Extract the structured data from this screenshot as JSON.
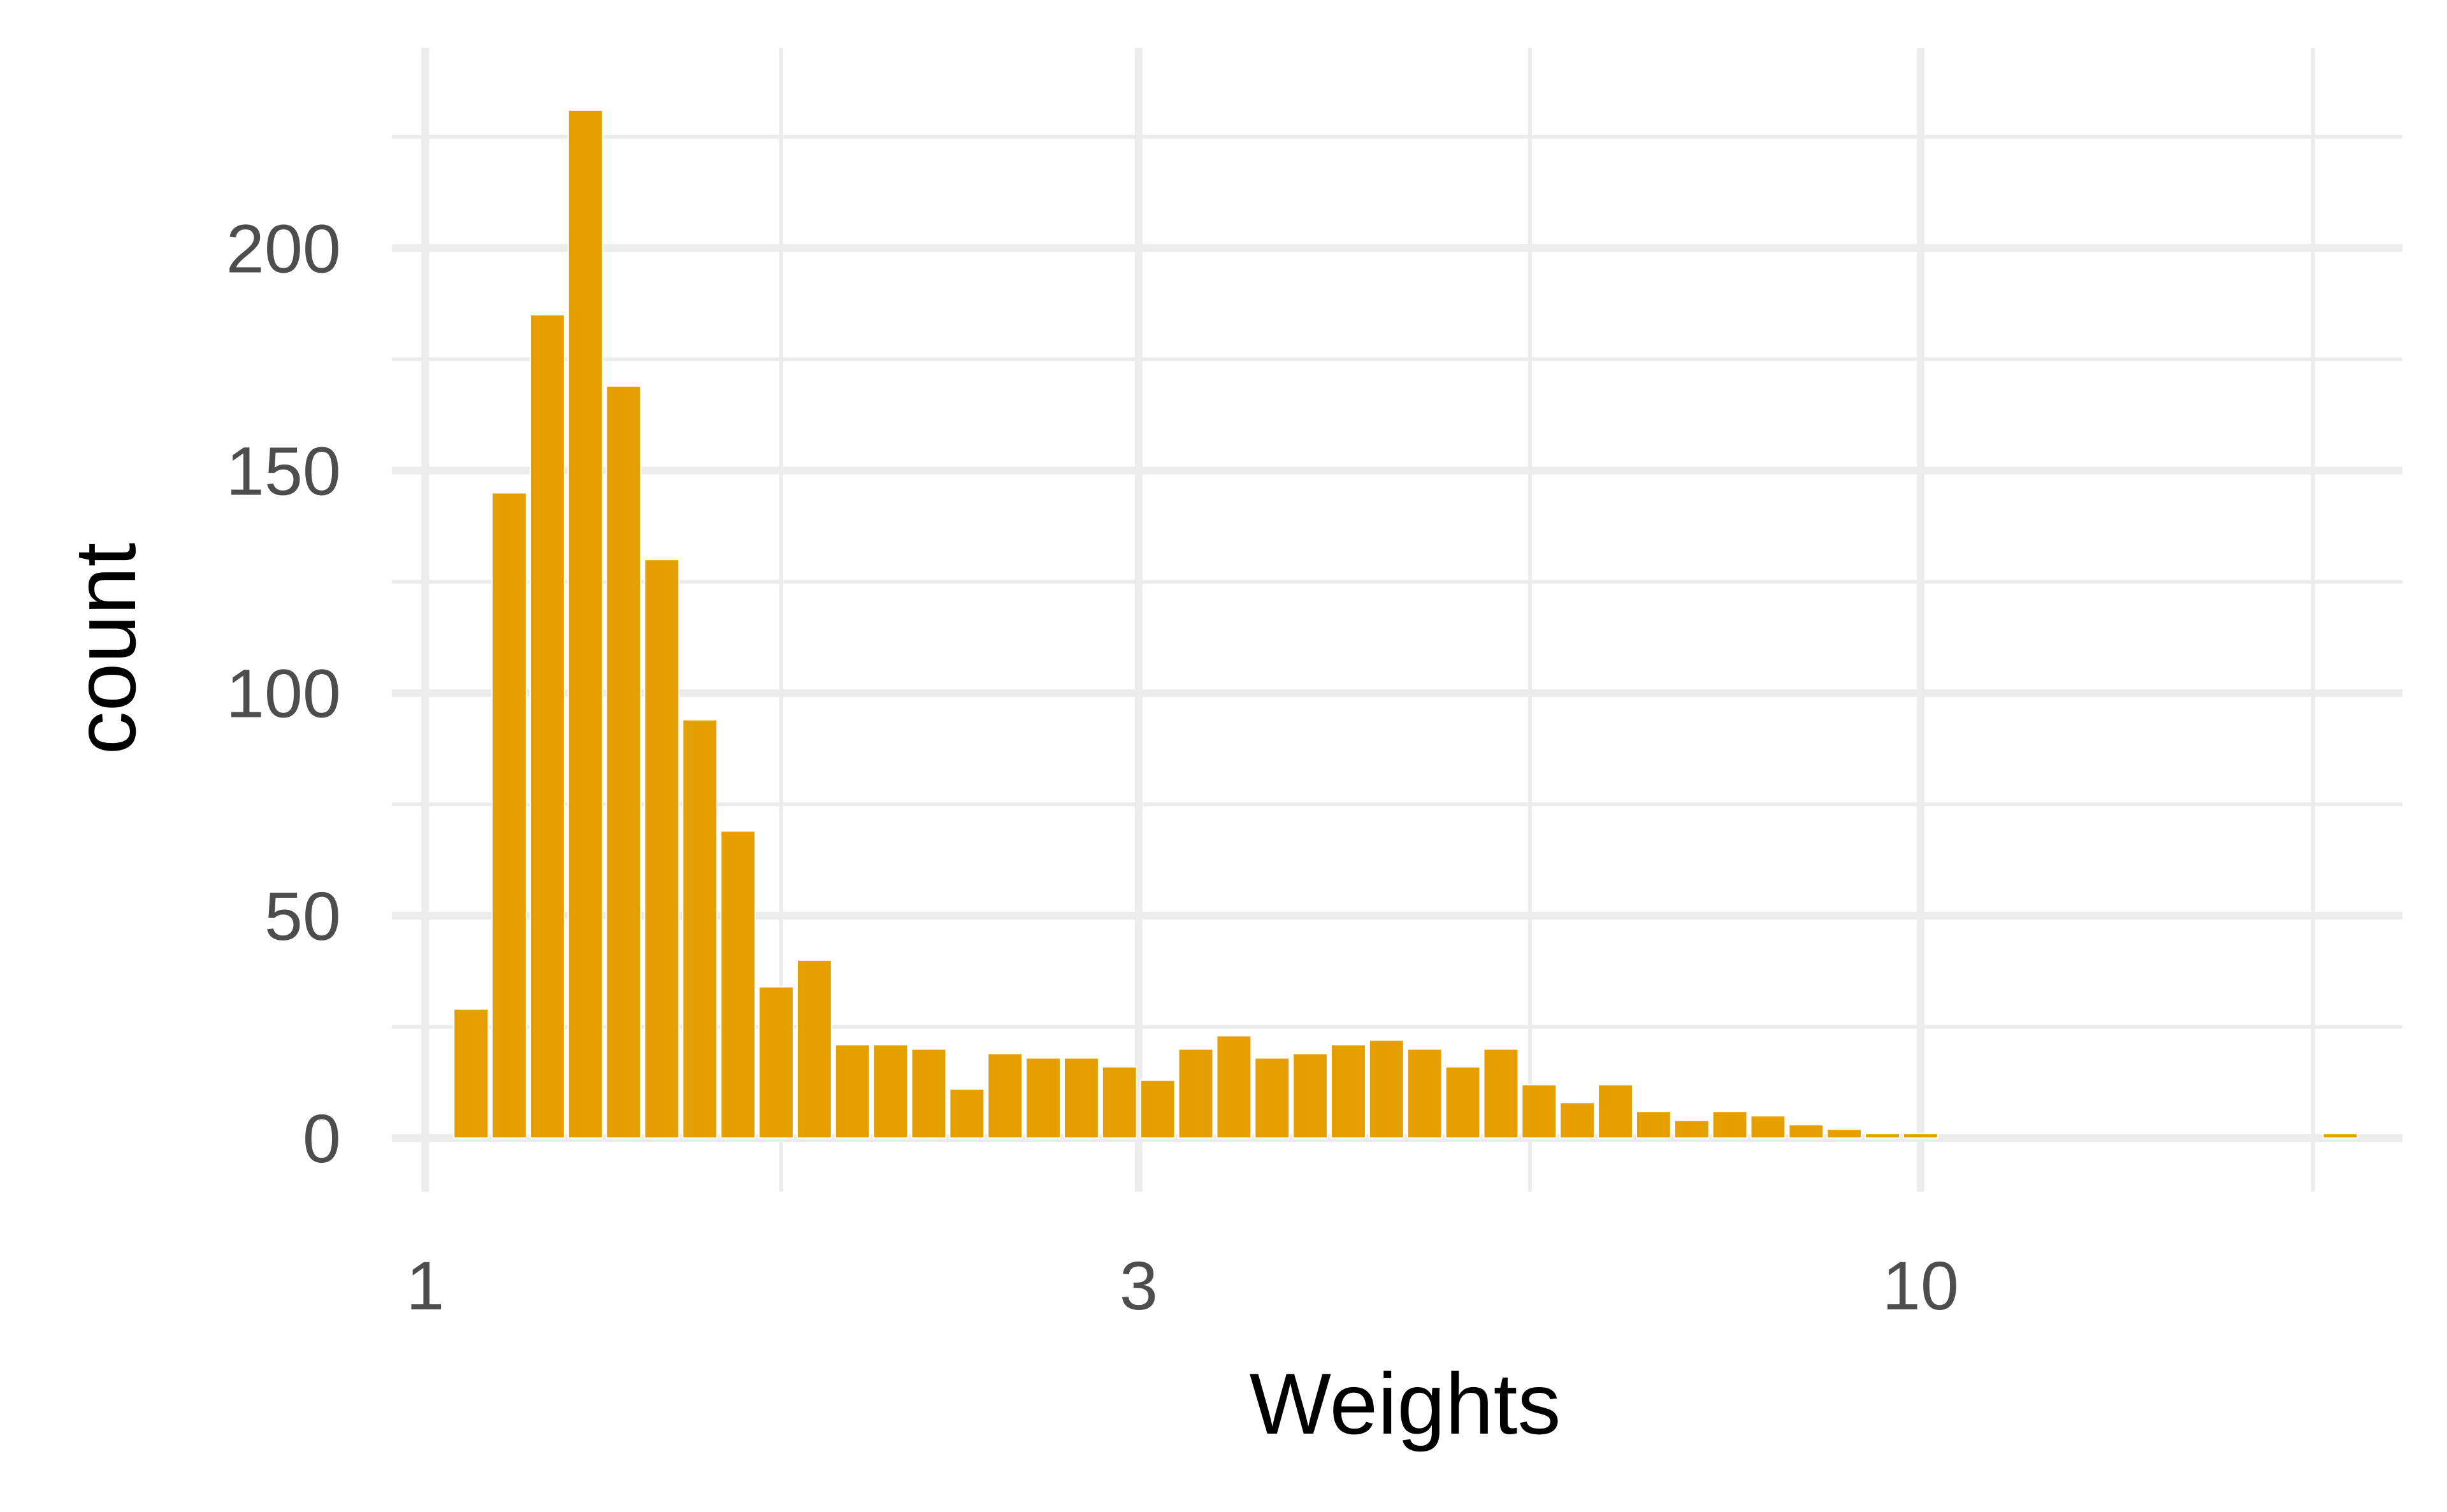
{
  "chart_data": {
    "type": "bar",
    "subtype": "histogram",
    "title": "",
    "xlabel": "Weights",
    "ylabel": "count",
    "x_scale": "log10",
    "xlim": [
      0.95,
      21.0
    ],
    "ylim": [
      -12,
      245
    ],
    "grid": true,
    "legend": "none",
    "bar_color": "#E69F00",
    "x_ticks": [
      {
        "value": 1,
        "label": "1"
      },
      {
        "value": 3,
        "label": "3"
      },
      {
        "value": 10,
        "label": "10"
      }
    ],
    "x_minor_ticks": [
      1.73,
      5.48,
      18.3
    ],
    "y_ticks": [
      {
        "value": 0,
        "label": "0"
      },
      {
        "value": 50,
        "label": "50"
      },
      {
        "value": 100,
        "label": "100"
      },
      {
        "value": 150,
        "label": "150"
      },
      {
        "value": 200,
        "label": "200"
      }
    ],
    "y_minor_ticks": [
      25,
      75,
      125,
      175,
      225
    ],
    "bins": {
      "x_start": 1.042,
      "x_end": 19.65,
      "count": 50
    },
    "values": [
      29,
      145,
      185,
      231,
      169,
      130,
      94,
      69,
      34,
      40,
      21,
      21,
      20,
      11,
      19,
      18,
      18,
      16,
      13,
      20,
      23,
      18,
      19,
      21,
      22,
      20,
      16,
      20,
      12,
      8,
      12,
      6,
      4,
      6,
      5,
      3,
      2,
      1,
      1,
      0,
      0,
      0,
      0,
      0,
      0,
      0,
      0,
      0,
      0,
      1
    ]
  }
}
